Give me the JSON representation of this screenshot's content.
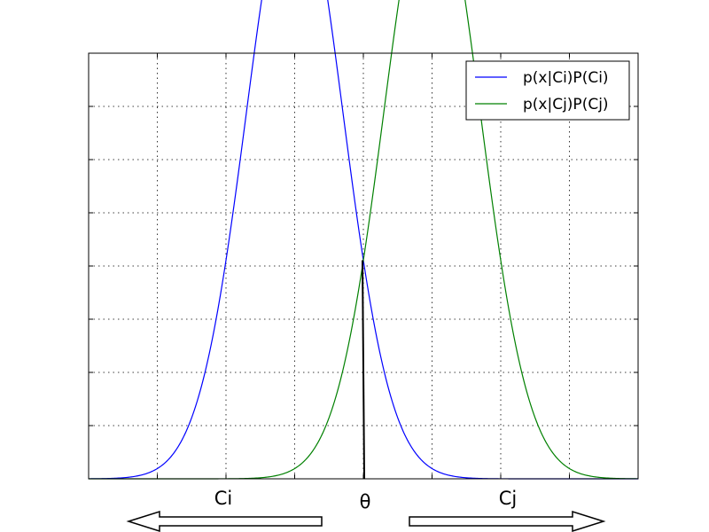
{
  "chart_data": {
    "type": "line",
    "title": "",
    "xlabel": "",
    "ylabel": "",
    "xlim": [
      -4,
      4
    ],
    "ylim": [
      0,
      0.4
    ],
    "grid": true,
    "legend_position": "top-right",
    "series": [
      {
        "name": "p(x|Ci)P(Ci)",
        "color": "#0000ff",
        "mu": -1.0,
        "sigma": 0.7
      },
      {
        "name": "p(x|Cj)P(Cj)",
        "color": "#008000",
        "mu": 1.0,
        "sigma": 0.7
      }
    ],
    "threshold": {
      "label": "θ",
      "x": 0.0
    },
    "regions": [
      {
        "label": "Ci",
        "direction": "left"
      },
      {
        "label": "Cj",
        "direction": "right"
      }
    ]
  }
}
